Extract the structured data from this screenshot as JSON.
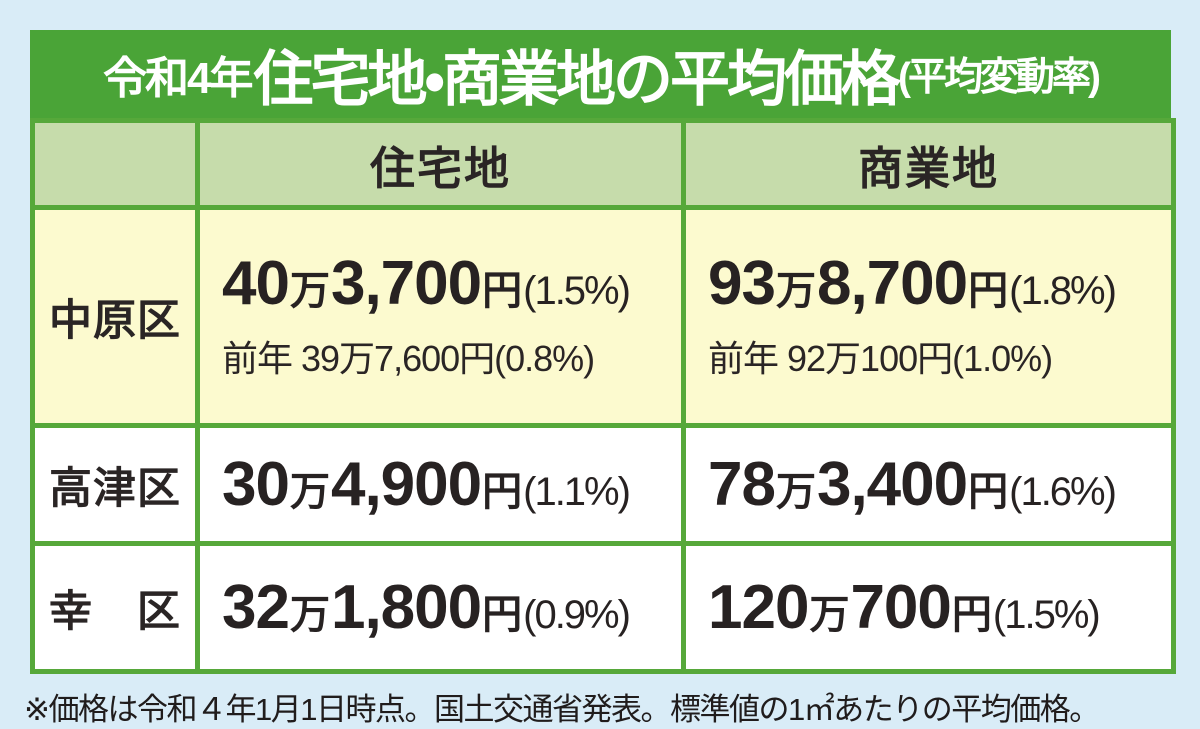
{
  "colors": {
    "page_bg": "#d9ecf7",
    "title_bg": "#4aa437",
    "title_text": "#ffffff",
    "table_border": "#56a83a",
    "header_bg": "#c6dcab",
    "highlight_row_bg": "#fcfacf",
    "row_bg": "#ffffff",
    "text": "#272222"
  },
  "title": {
    "prefix": "令和4年",
    "main": "住宅地・商業地の平均価格",
    "suffix": "(平均変動率)"
  },
  "table": {
    "headers": [
      "",
      "住宅地",
      "商業地"
    ],
    "rows": [
      {
        "district": "中原区",
        "res": {
          "a": "40",
          "u1": "万",
          "b": "3,700",
          "u2": "円",
          "p": "(1.5%)"
        },
        "res_prev": "前年 39万7,600円(0.8%)",
        "com": {
          "a": "93",
          "u1": "万",
          "b": "8,700",
          "u2": "円",
          "p": "(1.8%)"
        },
        "com_prev": "前年 92万100円(1.0%)"
      },
      {
        "district": "高津区",
        "res": {
          "a": "30",
          "u1": "万",
          "b": "4,900",
          "u2": "円",
          "p": "(1.1%)"
        },
        "com": {
          "a": "78",
          "u1": "万",
          "b": "3,400",
          "u2": "円",
          "p": "(1.6%)"
        }
      },
      {
        "district": "幸　区",
        "res": {
          "a": "32",
          "u1": "万",
          "b": "1,800",
          "u2": "円",
          "p": "(0.9%)"
        },
        "com": {
          "a": "120",
          "u1": "万",
          "b": "700",
          "u2": "円",
          "p": "(1.5%)"
        }
      }
    ]
  },
  "footnote": "※価格は令和４年1月1日時点。国土交通省発表。標準値の1㎡あたりの平均価格。",
  "chart_data": {
    "type": "table",
    "title": "令和4年住宅地・商業地の平均価格（平均変動率）",
    "columns": [
      "区",
      "住宅地",
      "商業地"
    ],
    "rows": [
      {
        "district": "中原区",
        "residential": "40万3,700円(1.5%)",
        "residential_prev_year": "前年 39万7,600円(0.8%)",
        "commercial": "93万8,700円(1.8%)",
        "commercial_prev_year": "前年 92万100円(1.0%)"
      },
      {
        "district": "高津区",
        "residential": "30万4,900円(1.1%)",
        "commercial": "78万3,400円(1.6%)"
      },
      {
        "district": "幸区",
        "residential": "32万1,800円(0.9%)",
        "commercial": "120万700円(1.5%)"
      }
    ],
    "residential_values_yen": [
      403700,
      304900,
      321800
    ],
    "residential_change_pct": [
      1.5,
      1.1,
      0.9
    ],
    "commercial_values_yen": [
      938700,
      783400,
      1200700
    ],
    "commercial_change_pct": [
      1.8,
      1.6,
      1.5
    ],
    "note": "※価格は令和４年1月1日時点。国土交通省発表。標準値の1㎡あたりの平均価格。"
  }
}
